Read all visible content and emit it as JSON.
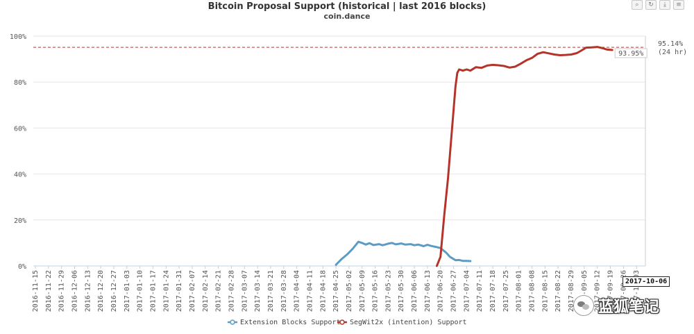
{
  "chart_data": {
    "type": "line",
    "title": "Bitcoin Proposal Support (historical | last 2016 blocks)",
    "subtitle": "coin.dance",
    "y_ticks": [
      "0%",
      "20%",
      "40%",
      "60%",
      "80%",
      "100%"
    ],
    "ylim": [
      0,
      100
    ],
    "x_ticks": [
      "2016-11-15",
      "2016-11-22",
      "2016-11-29",
      "2016-12-06",
      "2016-12-13",
      "2016-12-20",
      "2016-12-27",
      "2017-01-03",
      "2017-01-10",
      "2017-01-17",
      "2017-01-24",
      "2017-01-31",
      "2017-02-07",
      "2017-02-14",
      "2017-02-21",
      "2017-02-28",
      "2017-03-07",
      "2017-03-14",
      "2017-03-21",
      "2017-03-28",
      "2017-04-04",
      "2017-04-11",
      "2017-04-18",
      "2017-04-25",
      "2017-05-02",
      "2017-05-09",
      "2017-05-16",
      "2017-05-23",
      "2017-05-30",
      "2017-06-06",
      "2017-06-13",
      "2017-06-20",
      "2017-06-27",
      "2017-07-04",
      "2017-07-11",
      "2017-07-18",
      "2017-07-25",
      "2017-08-01",
      "2017-08-08",
      "2017-08-15",
      "2017-08-22",
      "2017-08-29",
      "2017-09-05",
      "2017-09-12",
      "2017-09-19",
      "2017-09-26",
      "2017-10-03"
    ],
    "grid": true,
    "legend_position": "bottom",
    "series": [
      {
        "name": "Extension Blocks Support",
        "color": "#5b9bc4",
        "points": [
          [
            "2017-04-25",
            0.5
          ],
          [
            "2017-04-28",
            3
          ],
          [
            "2017-05-01",
            5
          ],
          [
            "2017-05-04",
            7.5
          ],
          [
            "2017-05-07",
            10.5
          ],
          [
            "2017-05-09",
            10
          ],
          [
            "2017-05-11",
            9.3
          ],
          [
            "2017-05-13",
            9.9
          ],
          [
            "2017-05-15",
            9.1
          ],
          [
            "2017-05-18",
            9.5
          ],
          [
            "2017-05-20",
            9.0
          ],
          [
            "2017-05-23",
            9.7
          ],
          [
            "2017-05-25",
            10
          ],
          [
            "2017-05-27",
            9.4
          ],
          [
            "2017-05-30",
            9.8
          ],
          [
            "2017-06-01",
            9.3
          ],
          [
            "2017-06-04",
            9.5
          ],
          [
            "2017-06-06",
            9.0
          ],
          [
            "2017-06-08",
            9.3
          ],
          [
            "2017-06-11",
            8.6
          ],
          [
            "2017-06-13",
            9.2
          ],
          [
            "2017-06-15",
            8.7
          ],
          [
            "2017-06-18",
            8.2
          ],
          [
            "2017-06-20",
            7.8
          ],
          [
            "2017-06-23",
            5.8
          ],
          [
            "2017-06-25",
            4.0
          ],
          [
            "2017-06-28",
            2.5
          ],
          [
            "2017-06-30",
            2.6
          ],
          [
            "2017-07-02",
            2.2
          ],
          [
            "2017-07-04",
            2.2
          ],
          [
            "2017-07-06",
            2.1
          ]
        ]
      },
      {
        "name": "SegWit2x (intention) Support",
        "color": "#b5342a",
        "points": [
          [
            "2017-06-18",
            0
          ],
          [
            "2017-06-20",
            4
          ],
          [
            "2017-06-22",
            22
          ],
          [
            "2017-06-24",
            38
          ],
          [
            "2017-06-26",
            58
          ],
          [
            "2017-06-28",
            78
          ],
          [
            "2017-06-29",
            84
          ],
          [
            "2017-06-30",
            85.5
          ],
          [
            "2017-07-02",
            85
          ],
          [
            "2017-07-04",
            85.5
          ],
          [
            "2017-07-06",
            85
          ],
          [
            "2017-07-09",
            86.5
          ],
          [
            "2017-07-12",
            86.2
          ],
          [
            "2017-07-15",
            87.2
          ],
          [
            "2017-07-18",
            87.5
          ],
          [
            "2017-07-21",
            87.3
          ],
          [
            "2017-07-24",
            87.0
          ],
          [
            "2017-07-27",
            86.3
          ],
          [
            "2017-07-30",
            86.7
          ],
          [
            "2017-08-02",
            88.0
          ],
          [
            "2017-08-05",
            89.5
          ],
          [
            "2017-08-08",
            90.5
          ],
          [
            "2017-08-11",
            92.3
          ],
          [
            "2017-08-14",
            93.0
          ],
          [
            "2017-08-17",
            92.5
          ],
          [
            "2017-08-20",
            92.0
          ],
          [
            "2017-08-23",
            91.7
          ],
          [
            "2017-08-26",
            91.8
          ],
          [
            "2017-08-29",
            92.0
          ],
          [
            "2017-09-01",
            92.6
          ],
          [
            "2017-09-03",
            93.5
          ],
          [
            "2017-09-06",
            95.0
          ],
          [
            "2017-09-09",
            95.1
          ],
          [
            "2017-09-12",
            95.3
          ],
          [
            "2017-09-15",
            94.7
          ],
          [
            "2017-09-17",
            94.2
          ],
          [
            "2017-09-20",
            93.95
          ]
        ]
      }
    ],
    "reference_line": {
      "value": 95.14,
      "label": "95.14%",
      "sublabel": "(24 hr)",
      "color": "#b5342a"
    },
    "last_value_label": "93.95%",
    "date_tooltip": "2017-10-06"
  },
  "toolbar": {
    "zoom_icon": "zoom-icon",
    "reset_icon": "reset-icon",
    "export_icon": "export-icon",
    "menu_icon": "menu-icon"
  },
  "watermark": {
    "text": "蓝狐笔记"
  }
}
